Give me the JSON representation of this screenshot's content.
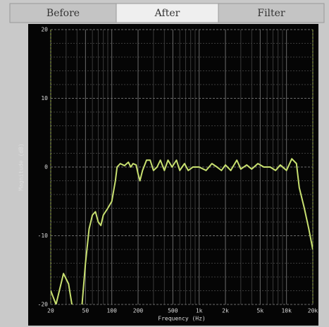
{
  "tabs": [
    "Before",
    "After",
    "Filter"
  ],
  "selected_tab": 1,
  "chart_data": {
    "type": "line",
    "xlabel": "Frequency (Hz)",
    "ylabel": "Magnitude (dB)",
    "xscale": "log",
    "xlim": [
      20,
      20000
    ],
    "ylim": [
      -20,
      20
    ],
    "xticks": [
      20,
      50,
      100,
      200,
      500,
      {
        "value": 1000,
        "label": "1k"
      },
      {
        "value": 2000,
        "label": "2k"
      },
      {
        "value": 5000,
        "label": "5k"
      },
      {
        "value": 10000,
        "label": "10k"
      },
      {
        "value": 20000,
        "label": "20k"
      }
    ],
    "yticks": [
      -20,
      -10,
      0,
      10,
      20
    ],
    "xminor": [
      30,
      40,
      60,
      70,
      80,
      90,
      300,
      400,
      600,
      700,
      800,
      900,
      3000,
      4000,
      6000,
      7000,
      8000,
      9000
    ],
    "yminor": [
      -18,
      -16,
      -14,
      -12,
      -8,
      -6,
      -4,
      -2,
      2,
      4,
      6,
      8,
      12,
      14,
      16,
      18
    ],
    "grid": true,
    "color": "#c8e070",
    "x": [
      20,
      23,
      28,
      32,
      36,
      45,
      50,
      55,
      60,
      65,
      70,
      75,
      80,
      90,
      100,
      110,
      115,
      125,
      140,
      155,
      165,
      175,
      190,
      200,
      210,
      225,
      250,
      275,
      300,
      330,
      360,
      400,
      440,
      490,
      550,
      600,
      680,
      750,
      850,
      1000,
      1200,
      1400,
      1600,
      1800,
      2000,
      2300,
      2700,
      3000,
      3500,
      4000,
      4700,
      5500,
      6500,
      7500,
      8500,
      10000,
      11500,
      13000,
      14000,
      16000,
      18000,
      20000
    ],
    "values": [
      -18,
      -20,
      -15.5,
      -17,
      -21,
      -21,
      -14,
      -9,
      -7,
      -6.5,
      -8,
      -8.5,
      -7,
      -6,
      -5,
      -2,
      0,
      0.5,
      0.2,
      0.7,
      0,
      0.5,
      0.3,
      -1,
      -2,
      -0.5,
      1,
      1,
      -0.5,
      0,
      1,
      -0.5,
      1,
      0,
      1,
      -0.5,
      0.5,
      -0.5,
      0,
      0,
      -0.5,
      0.5,
      0,
      -0.5,
      0.3,
      -0.5,
      1,
      -0.3,
      0.3,
      -0.3,
      0.5,
      0,
      0,
      -0.5,
      0.3,
      -0.5,
      1.2,
      0.5,
      -3,
      -6,
      -9,
      -12
    ]
  }
}
